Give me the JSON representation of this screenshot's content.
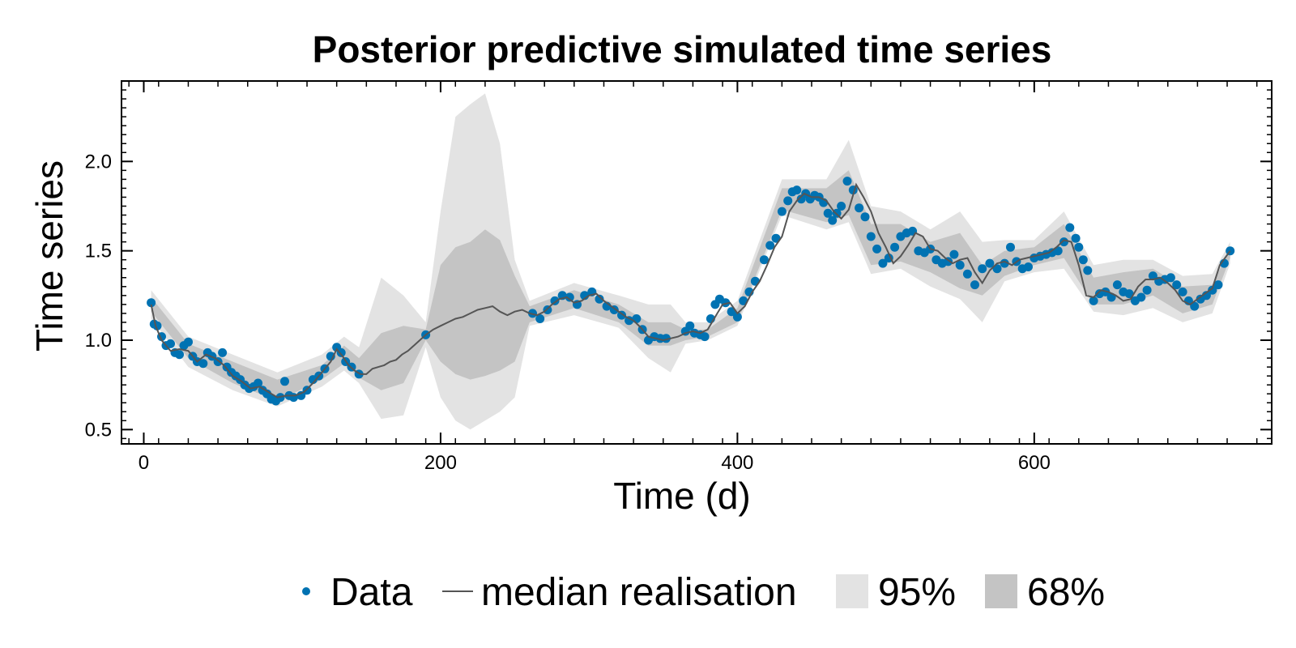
{
  "chart_data": {
    "type": "line",
    "title": "Posterior predictive simulated time series",
    "xlabel": "Time (d)",
    "ylabel": "Time series",
    "xlim": [
      -15,
      760
    ],
    "ylim": [
      0.42,
      2.45
    ],
    "x_ticks": [
      0,
      200,
      400,
      600
    ],
    "y_ticks": [
      0.5,
      1.0,
      1.5,
      2.0
    ],
    "x_tick_labels": [
      "0",
      "200",
      "400",
      "600"
    ],
    "y_tick_labels": [
      "0.5",
      "1.0",
      "1.5",
      "2.0"
    ],
    "grid": false,
    "legend_position": "bottom",
    "legend": [
      {
        "label": "Data",
        "kind": "marker"
      },
      {
        "label": "median realisation",
        "kind": "line"
      },
      {
        "label": "95%",
        "kind": "band"
      },
      {
        "label": "68%",
        "kind": "band"
      }
    ],
    "colors": {
      "data": "#0072b2",
      "median": "#555555",
      "band95": "#e3e3e3",
      "band68": "#c4c4c4"
    },
    "data_series": {
      "name": "Data",
      "x": [
        5,
        7,
        9,
        12,
        15,
        18,
        21,
        24,
        27,
        30,
        33,
        36,
        40,
        43,
        46,
        50,
        53,
        56,
        59,
        62,
        65,
        68,
        71,
        74,
        77,
        80,
        83,
        86,
        89,
        92,
        95,
        98,
        101,
        106,
        110,
        114,
        118,
        122,
        126,
        130,
        133,
        136,
        140,
        145,
        190,
        262,
        267,
        272,
        277,
        282,
        287,
        292,
        297,
        302,
        307,
        312,
        317,
        322,
        327,
        332,
        336,
        340,
        344,
        348,
        352,
        365,
        368,
        371,
        375,
        378,
        382,
        385,
        388,
        392,
        396,
        400,
        404,
        408,
        412,
        418,
        422,
        426,
        430,
        434,
        437,
        440,
        443,
        446,
        449,
        452,
        455,
        458,
        461,
        464,
        467,
        470,
        474,
        478,
        482,
        486,
        490,
        494,
        498,
        502,
        506,
        510,
        514,
        518,
        522,
        526,
        530,
        534,
        538,
        542,
        546,
        550,
        555,
        560,
        565,
        570,
        575,
        580,
        584,
        588,
        592,
        596,
        600,
        604,
        608,
        612,
        616,
        620,
        624,
        628,
        630,
        633,
        636,
        640,
        644,
        648,
        652,
        656,
        660,
        664,
        668,
        672,
        676,
        680,
        684,
        688,
        692,
        696,
        700,
        704,
        708,
        712,
        716,
        720,
        724,
        728,
        732
      ],
      "y": [
        1.21,
        1.09,
        1.08,
        1.02,
        0.97,
        0.98,
        0.93,
        0.92,
        0.97,
        0.99,
        0.91,
        0.88,
        0.87,
        0.93,
        0.91,
        0.88,
        0.93,
        0.85,
        0.82,
        0.8,
        0.78,
        0.75,
        0.73,
        0.74,
        0.76,
        0.72,
        0.7,
        0.67,
        0.66,
        0.68,
        0.77,
        0.69,
        0.68,
        0.69,
        0.72,
        0.78,
        0.8,
        0.84,
        0.91,
        0.96,
        0.93,
        0.88,
        0.85,
        0.81,
        1.03,
        1.15,
        1.12,
        1.17,
        1.22,
        1.25,
        1.24,
        1.2,
        1.25,
        1.27,
        1.23,
        1.19,
        1.17,
        1.14,
        1.11,
        1.12,
        1.06,
        1.0,
        1.02,
        1.01,
        1.01,
        1.05,
        1.08,
        1.04,
        1.03,
        1.02,
        1.12,
        1.2,
        1.23,
        1.21,
        1.16,
        1.13,
        1.22,
        1.27,
        1.33,
        1.45,
        1.53,
        1.57,
        1.72,
        1.78,
        1.83,
        1.84,
        1.79,
        1.82,
        1.79,
        1.81,
        1.8,
        1.77,
        1.71,
        1.67,
        1.71,
        1.75,
        1.89,
        1.84,
        1.74,
        1.69,
        1.58,
        1.51,
        1.43,
        1.46,
        1.52,
        1.58,
        1.6,
        1.61,
        1.5,
        1.49,
        1.51,
        1.45,
        1.43,
        1.44,
        1.48,
        1.42,
        1.37,
        1.31,
        1.4,
        1.43,
        1.4,
        1.43,
        1.52,
        1.44,
        1.4,
        1.41,
        1.46,
        1.47,
        1.48,
        1.49,
        1.5,
        1.55,
        1.63,
        1.57,
        1.52,
        1.45,
        1.39,
        1.22,
        1.26,
        1.27,
        1.24,
        1.31,
        1.27,
        1.26,
        1.22,
        1.24,
        1.28,
        1.36,
        1.33,
        1.34,
        1.35,
        1.31,
        1.27,
        1.22,
        1.19,
        1.23,
        1.25,
        1.28,
        1.31,
        1.43,
        1.5
      ]
    },
    "median_series": {
      "name": "median realisation",
      "x": [
        5,
        8,
        12,
        18,
        24,
        30,
        36,
        42,
        48,
        54,
        60,
        66,
        72,
        78,
        84,
        90,
        96,
        102,
        108,
        114,
        120,
        126,
        130,
        134,
        138,
        142,
        146,
        150,
        154,
        158,
        162,
        166,
        170,
        174,
        178,
        182,
        186,
        190,
        195,
        200,
        205,
        210,
        215,
        220,
        225,
        230,
        235,
        240,
        245,
        250,
        255,
        260,
        265,
        270,
        275,
        280,
        285,
        290,
        295,
        300,
        305,
        310,
        315,
        320,
        325,
        330,
        335,
        340,
        345,
        350,
        355,
        360,
        365,
        370,
        375,
        380,
        385,
        390,
        395,
        400,
        405,
        410,
        415,
        420,
        425,
        430,
        435,
        440,
        445,
        450,
        455,
        460,
        465,
        470,
        475,
        480,
        485,
        490,
        495,
        500,
        505,
        510,
        515,
        520,
        525,
        530,
        535,
        540,
        545,
        550,
        555,
        560,
        565,
        570,
        575,
        580,
        585,
        590,
        595,
        600,
        605,
        610,
        615,
        620,
        625,
        630,
        635,
        640,
        645,
        650,
        655,
        660,
        665,
        670,
        675,
        680,
        685,
        690,
        695,
        700,
        705,
        710,
        715,
        720,
        725,
        732
      ],
      "y": [
        1.2,
        1.08,
        1.0,
        0.94,
        0.95,
        0.94,
        0.88,
        0.92,
        0.9,
        0.86,
        0.8,
        0.77,
        0.73,
        0.74,
        0.71,
        0.68,
        0.69,
        0.69,
        0.71,
        0.76,
        0.82,
        0.88,
        0.95,
        0.91,
        0.86,
        0.83,
        0.81,
        0.81,
        0.84,
        0.85,
        0.86,
        0.88,
        0.89,
        0.92,
        0.94,
        0.97,
        1.0,
        1.03,
        1.06,
        1.08,
        1.1,
        1.12,
        1.13,
        1.15,
        1.17,
        1.18,
        1.19,
        1.16,
        1.14,
        1.16,
        1.17,
        1.15,
        1.14,
        1.16,
        1.2,
        1.23,
        1.24,
        1.21,
        1.22,
        1.25,
        1.26,
        1.22,
        1.19,
        1.16,
        1.13,
        1.11,
        1.07,
        1.02,
        1.01,
        1.0,
        1.01,
        1.02,
        1.04,
        1.05,
        1.04,
        1.06,
        1.13,
        1.2,
        1.21,
        1.15,
        1.19,
        1.27,
        1.33,
        1.42,
        1.52,
        1.58,
        1.72,
        1.78,
        1.82,
        1.8,
        1.8,
        1.78,
        1.72,
        1.68,
        1.73,
        1.87,
        1.8,
        1.72,
        1.6,
        1.52,
        1.43,
        1.47,
        1.53,
        1.6,
        1.58,
        1.51,
        1.5,
        1.46,
        1.43,
        1.45,
        1.46,
        1.38,
        1.32,
        1.39,
        1.43,
        1.44,
        1.42,
        1.45,
        1.46,
        1.47,
        1.48,
        1.49,
        1.52,
        1.56,
        1.55,
        1.42,
        1.25,
        1.24,
        1.28,
        1.27,
        1.25,
        1.22,
        1.23,
        1.3,
        1.34,
        1.34,
        1.35,
        1.32,
        1.28,
        1.22,
        1.2,
        1.23,
        1.26,
        1.29,
        1.42,
        1.5
      ]
    },
    "band95": {
      "name": "95%",
      "x": [
        5,
        30,
        60,
        90,
        120,
        135,
        145,
        160,
        175,
        190,
        200,
        210,
        220,
        230,
        240,
        250,
        260,
        290,
        320,
        340,
        355,
        365,
        380,
        400,
        430,
        460,
        475,
        490,
        510,
        530,
        550,
        565,
        580,
        600,
        620,
        640,
        660,
        680,
        700,
        720,
        732
      ],
      "lower": [
        1.12,
        0.85,
        0.72,
        0.63,
        0.74,
        0.83,
        0.76,
        0.56,
        0.58,
        0.96,
        0.68,
        0.55,
        0.5,
        0.55,
        0.6,
        0.68,
        1.08,
        1.14,
        1.07,
        0.9,
        0.82,
        0.98,
        1.0,
        1.08,
        1.7,
        1.62,
        1.66,
        1.37,
        1.4,
        1.3,
        1.23,
        1.1,
        1.33,
        1.38,
        1.4,
        1.16,
        1.14,
        1.18,
        1.1,
        1.15,
        1.43
      ],
      "upper": [
        1.28,
        1.02,
        0.92,
        0.82,
        0.92,
        1.02,
        0.96,
        1.35,
        1.25,
        1.1,
        1.72,
        2.25,
        2.32,
        2.38,
        2.1,
        1.45,
        1.22,
        1.32,
        1.25,
        1.2,
        1.2,
        1.1,
        1.1,
        1.22,
        1.9,
        1.9,
        2.12,
        1.75,
        1.72,
        1.62,
        1.72,
        1.55,
        1.56,
        1.56,
        1.72,
        1.42,
        1.45,
        1.45,
        1.36,
        1.37,
        1.55
      ]
    },
    "band68": {
      "name": "68%",
      "x": [
        5,
        30,
        60,
        90,
        120,
        135,
        145,
        160,
        175,
        190,
        200,
        210,
        220,
        230,
        240,
        250,
        260,
        290,
        320,
        340,
        355,
        365,
        380,
        400,
        430,
        460,
        475,
        490,
        510,
        530,
        550,
        565,
        580,
        600,
        620,
        640,
        660,
        680,
        700,
        720,
        732
      ],
      "lower": [
        1.16,
        0.9,
        0.76,
        0.66,
        0.78,
        0.87,
        0.79,
        0.72,
        0.76,
        1.0,
        0.88,
        0.81,
        0.78,
        0.8,
        0.83,
        0.88,
        1.1,
        1.18,
        1.1,
        0.97,
        0.97,
        1.0,
        1.02,
        1.1,
        1.73,
        1.66,
        1.7,
        1.42,
        1.44,
        1.38,
        1.29,
        1.25,
        1.36,
        1.42,
        1.46,
        1.2,
        1.2,
        1.25,
        1.15,
        1.2,
        1.46
      ],
      "upper": [
        1.24,
        0.98,
        0.88,
        0.78,
        0.86,
        0.97,
        0.9,
        1.04,
        1.08,
        1.06,
        1.42,
        1.52,
        1.55,
        1.62,
        1.56,
        1.36,
        1.19,
        1.28,
        1.2,
        1.1,
        1.1,
        1.06,
        1.06,
        1.18,
        1.85,
        1.85,
        1.95,
        1.65,
        1.65,
        1.55,
        1.6,
        1.42,
        1.5,
        1.52,
        1.65,
        1.35,
        1.38,
        1.4,
        1.3,
        1.31,
        1.52
      ]
    }
  }
}
